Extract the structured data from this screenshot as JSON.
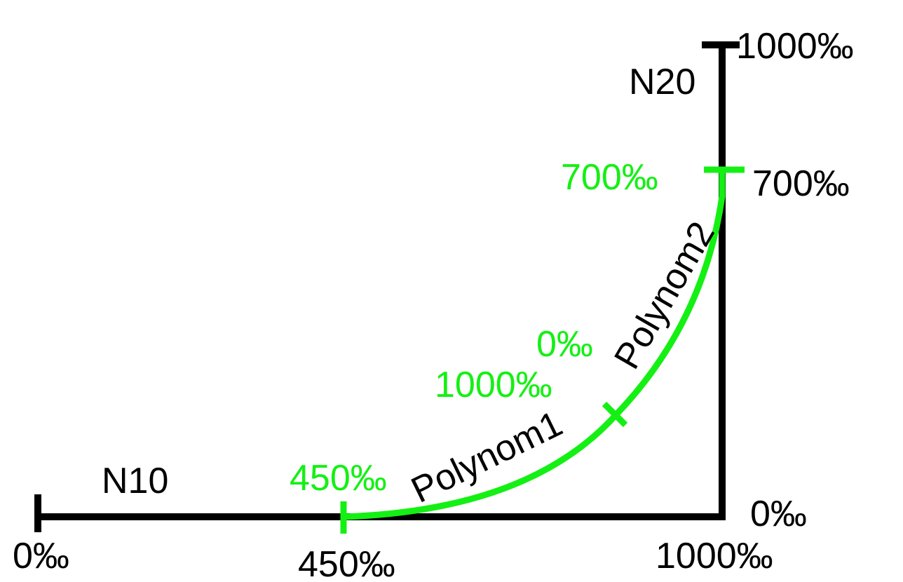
{
  "colors": {
    "line": "#000000",
    "curve": "#14f014",
    "background": "#ffffff"
  },
  "lines": {
    "n10": {
      "name": "N10",
      "start_label": "0‰",
      "split_label": "450‰",
      "end_label": "1000‰"
    },
    "n20": {
      "name": "N20",
      "start_label": "0‰",
      "split_label": "700‰",
      "end_label": "1000‰"
    }
  },
  "polynomials": {
    "p1": {
      "name": "Polynom1",
      "start_label": "450‰",
      "end_label": "1000‰"
    },
    "p2": {
      "name": "Polynom2",
      "start_label": "0‰",
      "end_label": "700‰"
    }
  }
}
